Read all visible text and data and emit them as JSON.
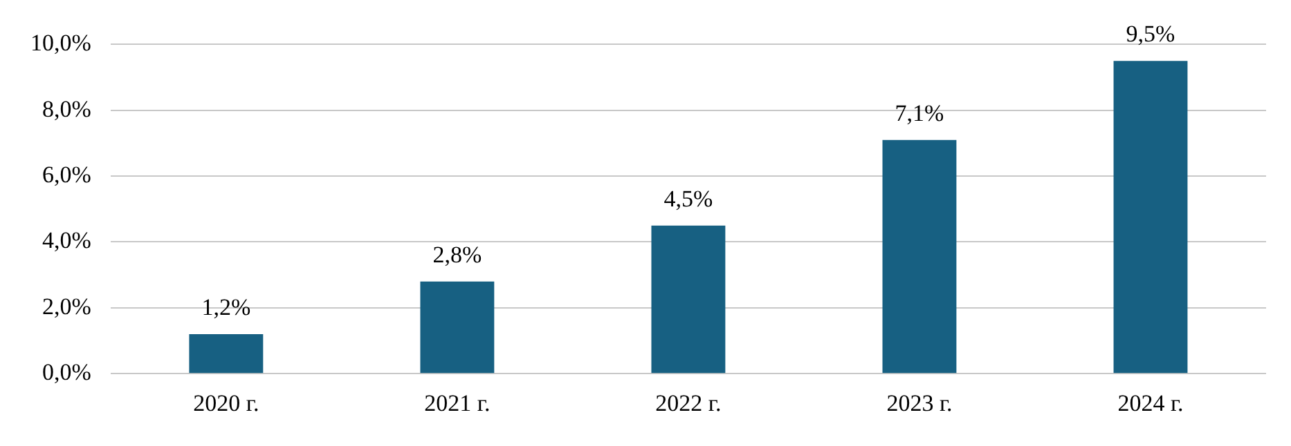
{
  "chart_data": {
    "type": "bar",
    "categories": [
      "2020 г.",
      "2021 г.",
      "2022 г.",
      "2023 г.",
      "2024 г."
    ],
    "values": [
      1.2,
      2.8,
      4.5,
      7.1,
      9.5
    ],
    "color": "#176082",
    "value_labels": [
      "1,2%",
      "2,8%",
      "4,5%",
      "7,1%",
      "9,5%"
    ],
    "ylim": [
      0,
      10
    ],
    "yticks": [
      {
        "value": 0,
        "label": "0,0%"
      },
      {
        "value": 2,
        "label": "2,0%"
      },
      {
        "value": 4,
        "label": "4,0%"
      },
      {
        "value": 6,
        "label": "6,0%"
      },
      {
        "value": 8,
        "label": "8,0%"
      },
      {
        "value": 10,
        "label": "10,0%"
      }
    ],
    "grid": "y",
    "legend": false
  }
}
